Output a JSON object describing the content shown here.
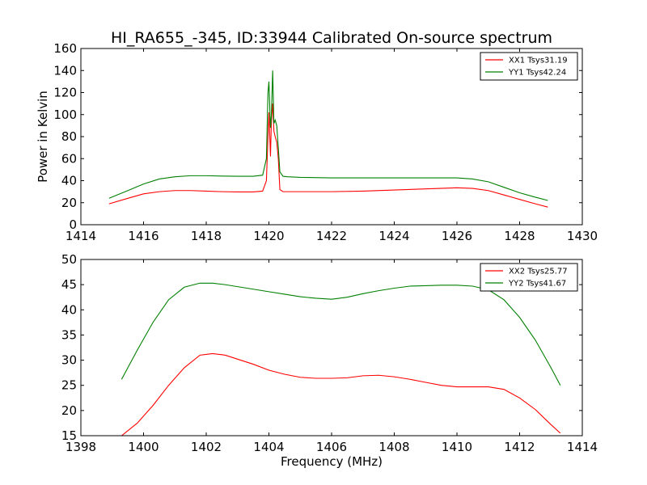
{
  "chart_data": [
    {
      "type": "line",
      "title": "HI_RA655_-345, ID:33944 Calibrated On-source spectrum",
      "xlabel": "",
      "ylabel": "Power in Kelvin",
      "xlim": [
        1414,
        1430
      ],
      "ylim": [
        0,
        160
      ],
      "xticks": [
        1414,
        1416,
        1418,
        1420,
        1422,
        1424,
        1426,
        1428,
        1430
      ],
      "yticks": [
        0,
        20,
        40,
        60,
        80,
        100,
        120,
        140,
        160
      ],
      "legend_position": "top-right",
      "grid": false,
      "series": [
        {
          "name": "XX1 Tsys31.19",
          "color": "#ff0000",
          "x": [
            1414.9,
            1415.5,
            1416,
            1416.5,
            1417,
            1417.5,
            1418,
            1418.5,
            1419,
            1419.5,
            1419.8,
            1419.92,
            1419.97,
            1420.0,
            1420.05,
            1420.08,
            1420.12,
            1420.16,
            1420.2,
            1420.25,
            1420.3,
            1420.35,
            1420.45,
            1420.6,
            1421,
            1422,
            1423,
            1424,
            1425,
            1426,
            1426.5,
            1427,
            1427.5,
            1428,
            1428.5,
            1428.9
          ],
          "y": [
            19,
            24,
            28,
            30,
            31,
            31,
            30.5,
            30,
            29.8,
            29.8,
            30.5,
            40,
            80,
            102,
            62,
            95,
            110,
            85,
            80,
            75,
            60,
            32,
            30,
            30,
            30,
            30,
            30.5,
            31.5,
            32.5,
            33.5,
            33,
            31,
            27,
            23,
            19,
            16
          ]
        },
        {
          "name": "YY1 Tsys42.24",
          "color": "#008000",
          "x": [
            1414.9,
            1415.5,
            1416,
            1416.5,
            1417,
            1417.5,
            1418,
            1418.5,
            1419,
            1419.5,
            1419.8,
            1419.92,
            1419.97,
            1420.0,
            1420.05,
            1420.08,
            1420.12,
            1420.16,
            1420.2,
            1420.25,
            1420.3,
            1420.35,
            1420.45,
            1420.6,
            1421,
            1422,
            1423,
            1424,
            1425,
            1426,
            1426.5,
            1427,
            1427.5,
            1428,
            1428.5,
            1428.9
          ],
          "y": [
            24,
            31,
            37,
            41.5,
            43.5,
            44.5,
            44.5,
            44.2,
            44,
            44,
            45,
            60,
            120,
            130,
            88,
            100,
            140,
            92,
            95,
            90,
            70,
            48,
            44,
            43.5,
            43,
            42.5,
            42.5,
            42.5,
            42.5,
            42.5,
            41.5,
            39,
            34,
            29,
            25,
            22
          ]
        }
      ]
    },
    {
      "type": "line",
      "title": "",
      "xlabel": "Frequency (MHz)",
      "ylabel": "",
      "xlim": [
        1398,
        1414
      ],
      "ylim": [
        15,
        50
      ],
      "xticks": [
        1398,
        1400,
        1402,
        1404,
        1406,
        1408,
        1410,
        1412,
        1414
      ],
      "yticks": [
        15,
        20,
        25,
        30,
        35,
        40,
        45,
        50
      ],
      "legend_position": "top-right",
      "grid": false,
      "series": [
        {
          "name": "XX2 Tsys25.77",
          "color": "#ff0000",
          "x": [
            1399.3,
            1399.8,
            1400.3,
            1400.8,
            1401.3,
            1401.8,
            1402.2,
            1402.6,
            1403,
            1403.5,
            1404,
            1404.5,
            1405,
            1405.5,
            1406,
            1406.5,
            1407,
            1407.5,
            1408,
            1408.5,
            1409,
            1409.5,
            1410,
            1410.5,
            1411,
            1411.5,
            1412,
            1412.5,
            1413,
            1413.3
          ],
          "y": [
            15,
            17.5,
            21,
            25,
            28.5,
            31,
            31.3,
            31,
            30.2,
            29.2,
            28,
            27.2,
            26.6,
            26.4,
            26.4,
            26.5,
            26.9,
            27,
            26.7,
            26.2,
            25.6,
            25.0,
            24.7,
            24.7,
            24.7,
            24.2,
            22.5,
            20.2,
            17.2,
            15.5
          ]
        },
        {
          "name": "YY2 Tsys41.67",
          "color": "#008000",
          "x": [
            1399.3,
            1399.8,
            1400.3,
            1400.8,
            1401.3,
            1401.8,
            1402.2,
            1402.6,
            1403,
            1403.5,
            1404,
            1404.5,
            1405,
            1405.5,
            1406,
            1406.5,
            1407,
            1407.5,
            1408,
            1408.5,
            1409,
            1409.5,
            1410,
            1410.5,
            1411,
            1411.5,
            1412,
            1412.5,
            1413,
            1413.3
          ],
          "y": [
            26.2,
            32,
            37.5,
            42,
            44.5,
            45.3,
            45.3,
            45,
            44.6,
            44.1,
            43.6,
            43.1,
            42.6,
            42.3,
            42.1,
            42.5,
            43.2,
            43.8,
            44.3,
            44.7,
            44.8,
            44.9,
            44.9,
            44.7,
            44.0,
            42,
            38.5,
            34,
            28.5,
            25
          ]
        }
      ]
    }
  ]
}
